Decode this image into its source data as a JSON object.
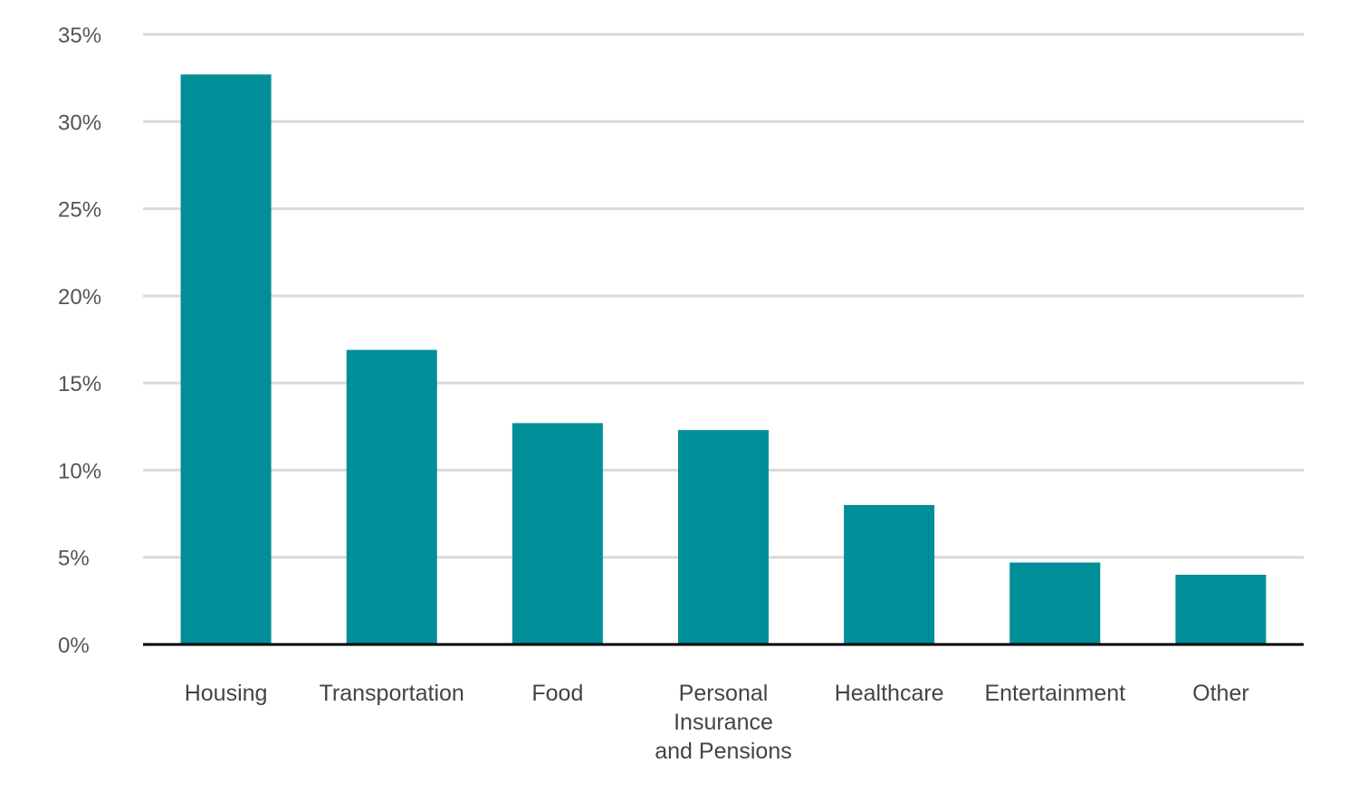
{
  "chart_data": {
    "type": "bar",
    "title": "",
    "xlabel": "",
    "ylabel": "",
    "categories": [
      [
        "Housing"
      ],
      [
        "Transportation"
      ],
      [
        "Food"
      ],
      [
        "Personal",
        "Insurance",
        "and Pensions"
      ],
      [
        "Healthcare"
      ],
      [
        "Entertainment"
      ],
      [
        "Other"
      ]
    ],
    "values": [
      32.7,
      16.9,
      12.7,
      12.3,
      8.0,
      4.7,
      4.0
    ],
    "ylim": [
      0,
      35
    ],
    "y_ticks": [
      0,
      5,
      10,
      15,
      20,
      25,
      30,
      35
    ],
    "y_tick_labels": [
      "0%",
      "5%",
      "10%",
      "15%",
      "20%",
      "25%",
      "30%",
      "35%"
    ],
    "grid": true,
    "legend": "none",
    "colors": {
      "bar": "#008e98",
      "grid": "#d9d9d9",
      "axis": "#000000"
    }
  }
}
